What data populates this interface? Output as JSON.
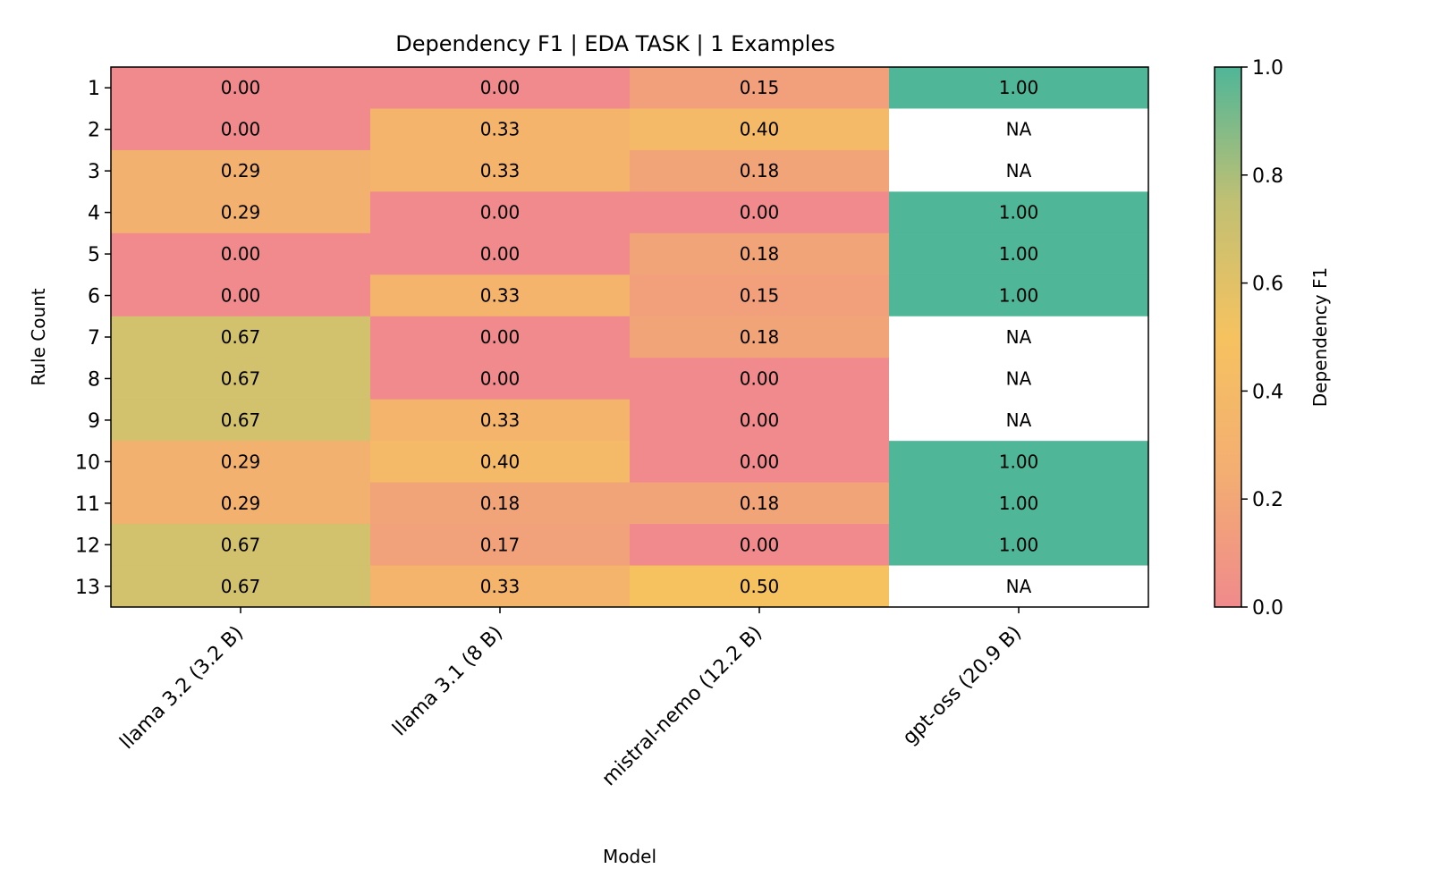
{
  "chart_data": {
    "type": "heatmap",
    "title": "Dependency F1 | EDA TASK | 1 Examples",
    "xlabel": "Model",
    "ylabel": "Rule Count",
    "colorbar_label": "Dependency F1",
    "x_categories": [
      "llama 3.2 (3.2 B)",
      "llama 3.1 (8 B)",
      "mistral-nemo (12.2 B)",
      "gpt-oss (20.9 B)"
    ],
    "y_categories": [
      "1",
      "2",
      "3",
      "4",
      "5",
      "6",
      "7",
      "8",
      "9",
      "10",
      "11",
      "12",
      "13"
    ],
    "values": [
      [
        0.0,
        0.0,
        0.15,
        1.0
      ],
      [
        0.0,
        0.33,
        0.4,
        null
      ],
      [
        0.29,
        0.33,
        0.18,
        null
      ],
      [
        0.29,
        0.0,
        0.0,
        1.0
      ],
      [
        0.0,
        0.0,
        0.18,
        1.0
      ],
      [
        0.0,
        0.33,
        0.15,
        1.0
      ],
      [
        0.67,
        0.0,
        0.18,
        null
      ],
      [
        0.67,
        0.0,
        0.0,
        null
      ],
      [
        0.67,
        0.33,
        0.0,
        null
      ],
      [
        0.29,
        0.4,
        0.0,
        1.0
      ],
      [
        0.29,
        0.18,
        0.18,
        1.0
      ],
      [
        0.67,
        0.17,
        0.0,
        1.0
      ],
      [
        0.67,
        0.33,
        0.5,
        null
      ]
    ],
    "missing_label": "NA",
    "vmin": 0.0,
    "vmax": 1.0,
    "colorbar_ticks": [
      "0.0",
      "0.2",
      "0.4",
      "0.6",
      "0.8",
      "1.0"
    ],
    "colormap": [
      "#f08a8c",
      "#f3ae72",
      "#f6c260",
      "#c1c073",
      "#4fb698"
    ]
  }
}
